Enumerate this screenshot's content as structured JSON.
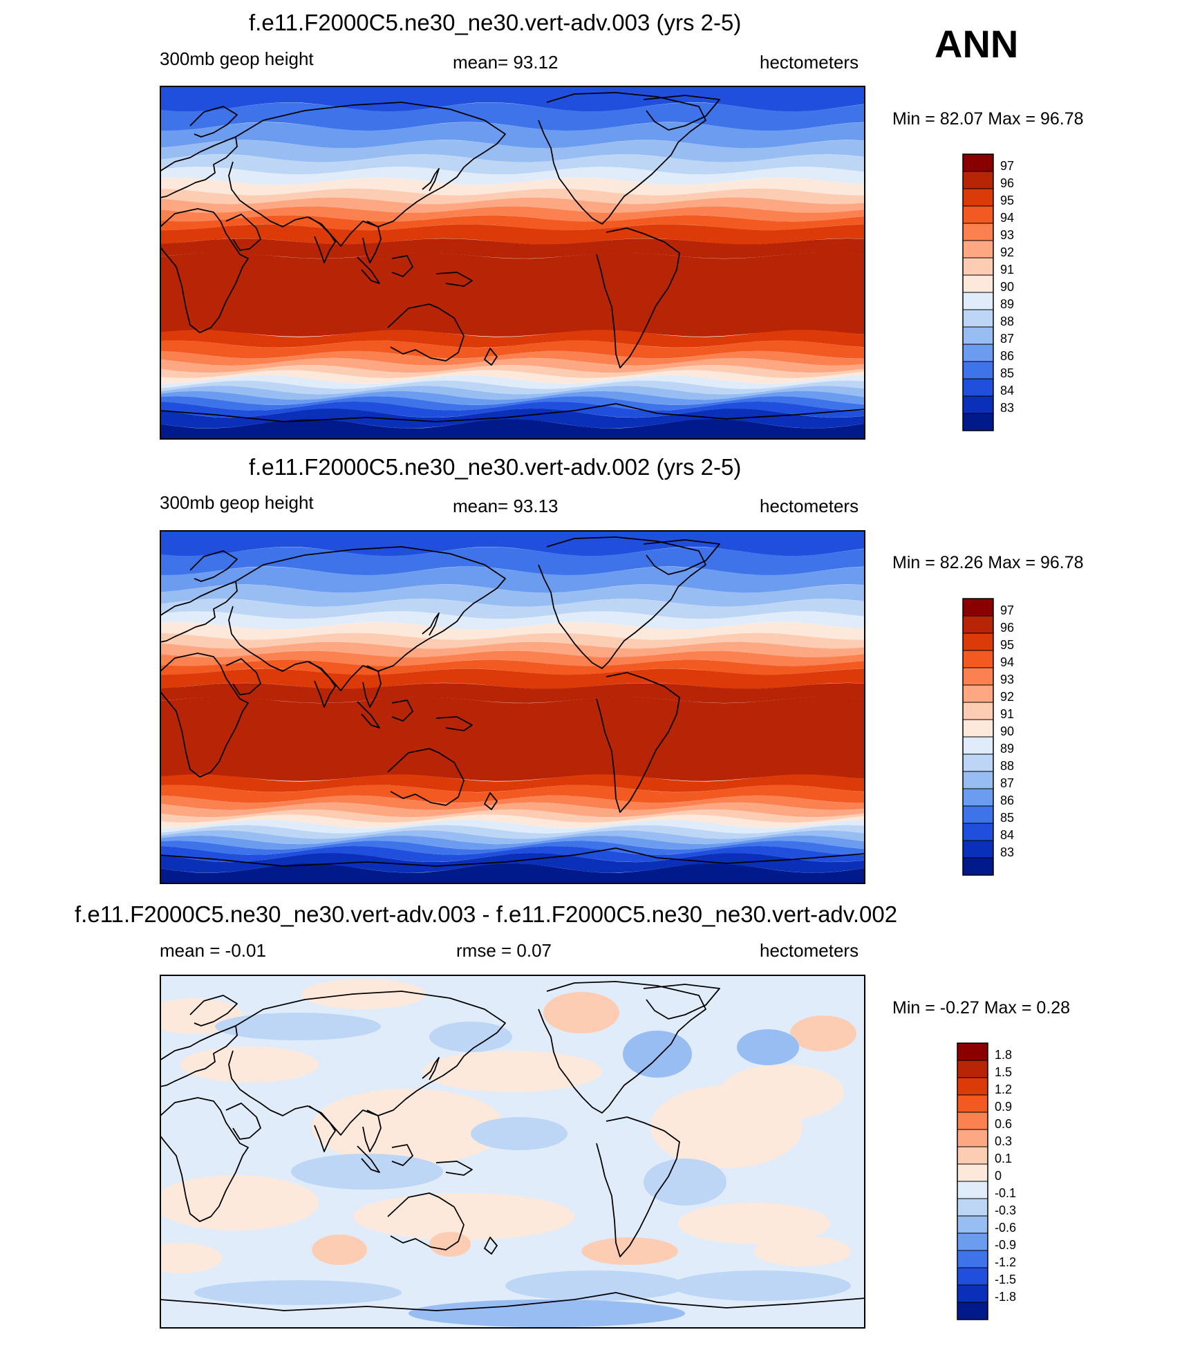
{
  "season": "ANN",
  "panels": [
    {
      "title": "f.e11.F2000C5.ne30_ne30.vert-adv.003 (yrs 2-5)",
      "left_label": "300mb geop height",
      "center_label": "mean=  93.12",
      "right_label": "hectometers",
      "minmax": "Min =  82.07 Max =  96.78"
    },
    {
      "title": "f.e11.F2000C5.ne30_ne30.vert-adv.002 (yrs 2-5)",
      "left_label": "300mb geop height",
      "center_label": "mean=  93.13",
      "right_label": "hectometers",
      "minmax": "Min =  82.26 Max =  96.78"
    },
    {
      "title": "f.e11.F2000C5.ne30_ne30.vert-adv.003 - f.e11.F2000C5.ne30_ne30.vert-adv.002",
      "left_label": "mean =  -0.01",
      "center_label": "rmse =   0.07",
      "right_label": "hectometers",
      "minmax": "Min =  -0.27 Max =   0.28"
    }
  ],
  "chart_data": [
    {
      "type": "heatmap",
      "title": "f.e11.F2000C5.ne30_ne30.vert-adv.003 (yrs 2-5)",
      "variable": "300mb geop height",
      "units": "hectometers",
      "mean": 93.12,
      "min": 82.07,
      "max": 96.78,
      "x": "longitude 0 to 360",
      "y": "latitude -90 to 90",
      "colorbar_levels": [
        83,
        84,
        85,
        86,
        87,
        88,
        89,
        90,
        91,
        92,
        93,
        94,
        95,
        96,
        97
      ],
      "colorbar_tick_labels": [
        "97",
        "96",
        "95",
        "94",
        "93",
        "92",
        "91",
        "90",
        "89",
        "88",
        "87",
        "86",
        "85",
        "84",
        "83"
      ],
      "colorbar_colors": [
        "#8a0000",
        "#b82506",
        "#dc3a08",
        "#f25a22",
        "#fb8150",
        "#fda882",
        "#fdcdb3",
        "#fde9dc",
        "#e0ecfa",
        "#bed6f6",
        "#97bdf2",
        "#6c9cf0",
        "#3f73ea",
        "#1f4fdc",
        "#0a2fb8",
        "#001a8c"
      ]
    },
    {
      "type": "heatmap",
      "title": "f.e11.F2000C5.ne30_ne30.vert-adv.002 (yrs 2-5)",
      "variable": "300mb geop height",
      "units": "hectometers",
      "mean": 93.13,
      "min": 82.26,
      "max": 96.78,
      "x": "longitude 0 to 360",
      "y": "latitude -90 to 90",
      "colorbar_levels": [
        83,
        84,
        85,
        86,
        87,
        88,
        89,
        90,
        91,
        92,
        93,
        94,
        95,
        96,
        97
      ],
      "colorbar_tick_labels": [
        "97",
        "96",
        "95",
        "94",
        "93",
        "92",
        "91",
        "90",
        "89",
        "88",
        "87",
        "86",
        "85",
        "84",
        "83"
      ],
      "colorbar_colors": [
        "#8a0000",
        "#b82506",
        "#dc3a08",
        "#f25a22",
        "#fb8150",
        "#fda882",
        "#fdcdb3",
        "#fde9dc",
        "#e0ecfa",
        "#bed6f6",
        "#97bdf2",
        "#6c9cf0",
        "#3f73ea",
        "#1f4fdc",
        "#0a2fb8",
        "#001a8c"
      ]
    },
    {
      "type": "heatmap",
      "title": "f.e11.F2000C5.ne30_ne30.vert-adv.003 - f.e11.F2000C5.ne30_ne30.vert-adv.002",
      "units": "hectometers",
      "mean": -0.01,
      "rmse": 0.07,
      "min": -0.27,
      "max": 0.28,
      "x": "longitude 0 to 360",
      "y": "latitude -90 to 90",
      "colorbar_levels": [
        -1.8,
        -1.5,
        -1.2,
        -0.9,
        -0.6,
        -0.3,
        -0.1,
        0,
        0.1,
        0.3,
        0.6,
        0.9,
        1.2,
        1.5,
        1.8
      ],
      "colorbar_tick_labels": [
        "1.8",
        "1.5",
        "1.2",
        "0.9",
        "0.6",
        "0.3",
        "0.1",
        "0",
        "-0.1",
        "-0.3",
        "-0.6",
        "-0.9",
        "-1.2",
        "-1.5",
        "-1.8"
      ],
      "colorbar_colors": [
        "#8a0000",
        "#b82506",
        "#dc3a08",
        "#f25a22",
        "#fb8150",
        "#fda882",
        "#fdcdb3",
        "#fde9dc",
        "#e0ecfa",
        "#bed6f6",
        "#97bdf2",
        "#6c9cf0",
        "#3f73ea",
        "#1f4fdc",
        "#0a2fb8",
        "#001a8c"
      ]
    }
  ]
}
